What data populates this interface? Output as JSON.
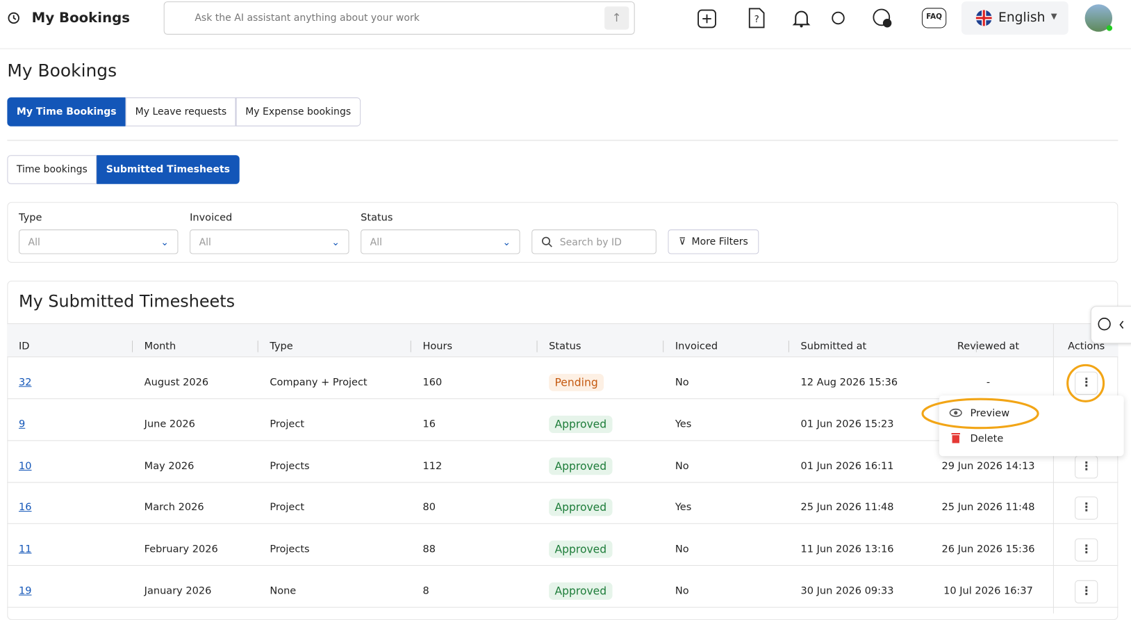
{
  "header": {
    "title": "My Bookings",
    "search_placeholder": "Ask the AI assistant anything about your work",
    "language": "English",
    "faq": "FAQ"
  },
  "page_title": "My Bookings",
  "tabs": [
    "My Time Bookings",
    "My Leave requests",
    "My Expense bookings"
  ],
  "subtabs": [
    "Time bookings",
    "Submitted Timesheets"
  ],
  "filters": {
    "type": {
      "label": "Type",
      "value": "All"
    },
    "invoiced": {
      "label": "Invoiced",
      "value": "All"
    },
    "status": {
      "label": "Status",
      "value": "All"
    },
    "search_placeholder": "Search by ID",
    "more_filters": "More Filters"
  },
  "table": {
    "title": "My Submitted Timesheets",
    "columns": [
      "ID",
      "Month",
      "Type",
      "Hours",
      "Status",
      "Invoiced",
      "Submitted at",
      "Reviewed at",
      "Actions"
    ],
    "rows": [
      [
        "32",
        "August 2026",
        "Company + Project",
        "160",
        "Pending",
        "No",
        "12 Aug 2026 15:36",
        "-"
      ],
      [
        "9",
        "June 2026",
        "Project",
        "16",
        "Approved",
        "Yes",
        "01 Jun 2026 15:23",
        null
      ],
      [
        "10",
        "May 2026",
        "Projects",
        "112",
        "Approved",
        "No",
        "01 Jun 2026 16:11",
        "29 Jun 2026 14:13"
      ],
      [
        "16",
        "March 2026",
        "Project",
        "80",
        "Approved",
        "Yes",
        "25 Jun 2026 11:48",
        "25 Jun 2026 11:48"
      ],
      [
        "11",
        "February 2026",
        "Projects",
        "88",
        "Approved",
        "No",
        "11 Jun 2026 13:16",
        "26 Jun 2026 15:36"
      ],
      [
        "19",
        "January 2026",
        "None",
        "8",
        "Approved",
        "No",
        "30 Jun 2026 09:33",
        "10 Jul 2026 16:37"
      ]
    ]
  },
  "action_menu": [
    "Preview",
    "Delete"
  ]
}
